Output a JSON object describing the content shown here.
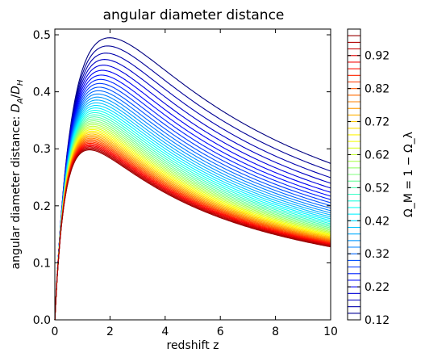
{
  "chart_data": {
    "type": "line",
    "title": "angular diameter distance",
    "xlabel": "redshift z",
    "ylabel_prefix": "angular diameter distance: ",
    "ylabel_math": "D_A/D_H",
    "xlim": [
      0,
      10
    ],
    "ylim": [
      0,
      0.51
    ],
    "xticks": [
      0,
      2,
      4,
      6,
      8,
      10
    ],
    "xtick_labels": [
      "0",
      "2",
      "4",
      "6",
      "8",
      "10"
    ],
    "yticks": [
      0.0,
      0.1,
      0.2,
      0.3,
      0.4,
      0.5
    ],
    "ytick_labels": [
      "0.0",
      "0.1",
      "0.2",
      "0.3",
      "0.4",
      "0.5"
    ],
    "grid": false,
    "colormap": "jet",
    "series_parameter": "Omega_M (flat universe, Omega_lambda = 1 - Omega_M)",
    "series_param_values": [
      0.12,
      0.14,
      0.16,
      0.18,
      0.2,
      0.22,
      0.24,
      0.26,
      0.28,
      0.3,
      0.32,
      0.34,
      0.36,
      0.38,
      0.4,
      0.42,
      0.44,
      0.46,
      0.48,
      0.5,
      0.52,
      0.54,
      0.56,
      0.58,
      0.6,
      0.62,
      0.64,
      0.66,
      0.68,
      0.7,
      0.72,
      0.74,
      0.76,
      0.78,
      0.8,
      0.82,
      0.84,
      0.86,
      0.88,
      0.9,
      0.92,
      0.94,
      0.96,
      0.98
    ],
    "colorbar": {
      "label": "Ω_M = 1 − Ω_λ",
      "range": [
        0.12,
        1.0
      ],
      "ticks": [
        0.12,
        0.22,
        0.32,
        0.42,
        0.52,
        0.62,
        0.72,
        0.82,
        0.92
      ],
      "tick_labels": [
        "0.12",
        "0.22",
        "0.32",
        "0.42",
        "0.52",
        "0.62",
        "0.72",
        "0.82",
        "0.92"
      ]
    },
    "peaks_observed": {
      "lowest_omega_peak": {
        "x": 2.0,
        "y": 0.495
      },
      "highest_omega_peak": {
        "x": 1.3,
        "y": 0.3
      },
      "lowest_omega_at_z10": 0.272,
      "highest_omega_at_z10": 0.128
    }
  }
}
